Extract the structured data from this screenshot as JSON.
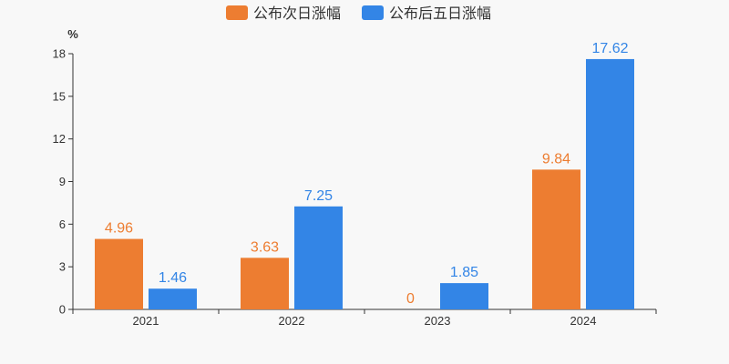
{
  "chart_data": {
    "type": "bar",
    "categories": [
      "2021",
      "2022",
      "2023",
      "2024"
    ],
    "series": [
      {
        "name": "公布次日涨幅",
        "values": [
          4.96,
          3.63,
          0,
          9.84
        ],
        "color": "#ed7d31"
      },
      {
        "name": "公布后五日涨幅",
        "values": [
          1.46,
          7.25,
          1.85,
          17.62
        ],
        "color": "#3385e6"
      }
    ],
    "value_labels": [
      [
        "4.96",
        "3.63",
        "0",
        "9.84"
      ],
      [
        "1.46",
        "7.25",
        "1.85",
        "17.62"
      ]
    ],
    "ylabel": "%",
    "ylim": [
      0,
      18
    ],
    "yticks": [
      "0",
      "3",
      "6",
      "9",
      "12",
      "15",
      "18"
    ],
    "grid": false,
    "legend_position": "top-center"
  }
}
